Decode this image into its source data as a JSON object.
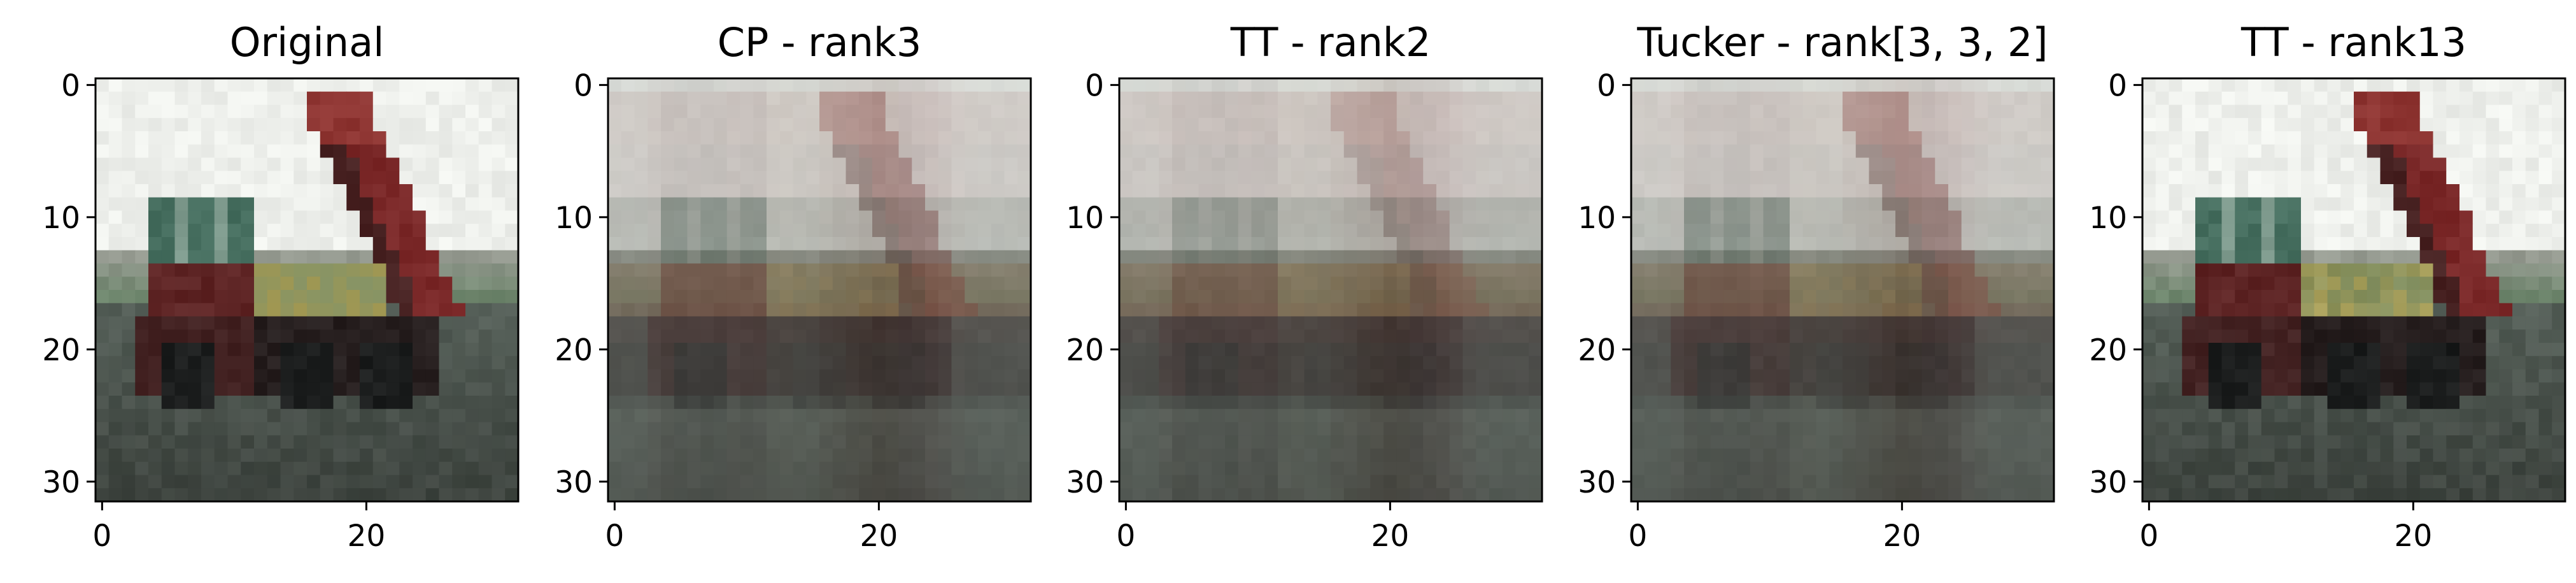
{
  "chart_data": [
    {
      "type": "heatmap",
      "title": "Original",
      "xlim": [
        0,
        31
      ],
      "ylim": [
        31,
        0
      ],
      "xticks": [
        "0",
        "20"
      ],
      "yticks": [
        "0",
        "10",
        "20",
        "30"
      ],
      "image": {
        "depicts": "dump-truck",
        "variant": "original"
      }
    },
    {
      "type": "heatmap",
      "title": "CP - rank3",
      "xlim": [
        0,
        31
      ],
      "ylim": [
        31,
        0
      ],
      "xticks": [
        "0",
        "20"
      ],
      "yticks": [
        "0",
        "10",
        "20",
        "30"
      ],
      "image": {
        "depicts": "dump-truck",
        "variant": "low-rank-blurry"
      }
    },
    {
      "type": "heatmap",
      "title": "TT - rank2",
      "xlim": [
        0,
        31
      ],
      "ylim": [
        31,
        0
      ],
      "xticks": [
        "0",
        "20"
      ],
      "yticks": [
        "0",
        "10",
        "20",
        "30"
      ],
      "image": {
        "depicts": "dump-truck",
        "variant": "very-low-rank-blurry"
      }
    },
    {
      "type": "heatmap",
      "title": "Tucker - rank[3, 3, 2]",
      "xlim": [
        0,
        31
      ],
      "ylim": [
        31,
        0
      ],
      "xticks": [
        "0",
        "20"
      ],
      "yticks": [
        "0",
        "10",
        "20",
        "30"
      ],
      "image": {
        "depicts": "dump-truck",
        "variant": "low-rank-blurry"
      }
    },
    {
      "type": "heatmap",
      "title": "TT - rank13",
      "xlim": [
        0,
        31
      ],
      "ylim": [
        31,
        0
      ],
      "xticks": [
        "0",
        "20"
      ],
      "yticks": [
        "0",
        "10",
        "20",
        "30"
      ],
      "image": {
        "depicts": "dump-truck",
        "variant": "high-rank"
      }
    }
  ],
  "colors": {
    "sky": "#eef0ec",
    "ground": "#3c423d",
    "truck_body": "#8b2a2a",
    "frame": "#000000"
  }
}
